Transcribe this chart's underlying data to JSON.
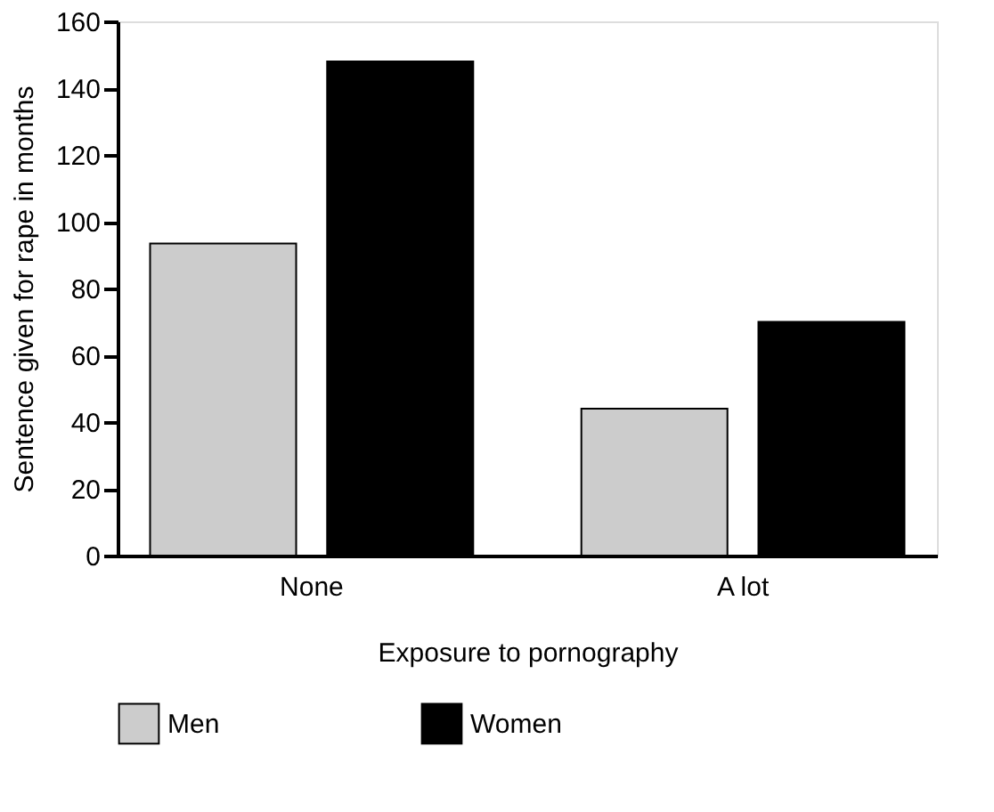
{
  "chart_data": {
    "type": "bar",
    "xlabel": "Exposure to pornography",
    "ylabel": "Sentence given for rape in months",
    "categories": [
      "None",
      "A lot"
    ],
    "series": [
      {
        "name": "Men",
        "color": "#cccccc",
        "values": [
          93.5,
          44
        ]
      },
      {
        "name": "Women",
        "color": "#000000",
        "values": [
          148,
          70
        ]
      }
    ],
    "ylim": [
      0,
      160
    ],
    "yticks": [
      0,
      20,
      40,
      60,
      80,
      100,
      120,
      140,
      160
    ],
    "grid": false,
    "legend": "bottom"
  }
}
